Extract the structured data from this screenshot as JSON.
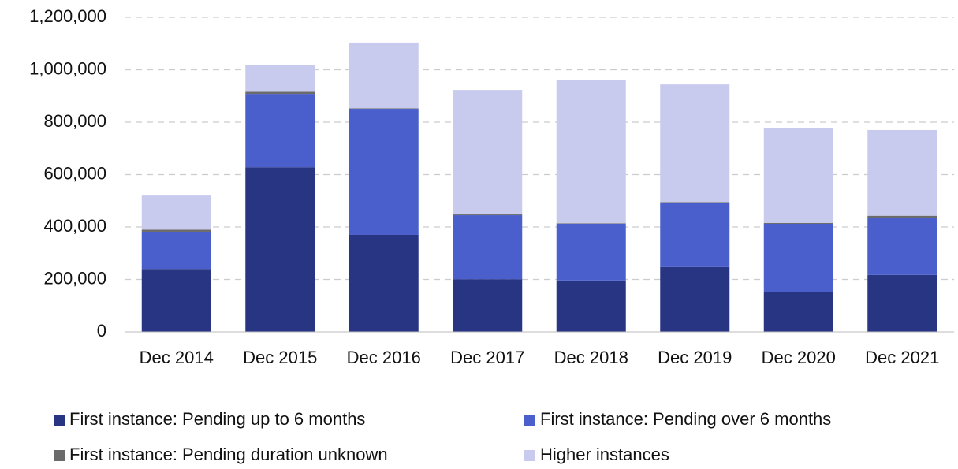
{
  "chart_data": {
    "type": "stacked_bar",
    "categories": [
      "Dec 2014",
      "Dec 2015",
      "Dec 2016",
      "Dec 2017",
      "Dec 2018",
      "Dec 2019",
      "Dec 2020",
      "Dec 2021"
    ],
    "series": [
      {
        "name": "First instance: Pending up to 6 months",
        "color": "#283583",
        "values": [
          240000,
          628000,
          370000,
          201000,
          196000,
          247000,
          153000,
          217000
        ]
      },
      {
        "name": "First instance: Pending over 6 months",
        "color": "#4a5fcc",
        "values": [
          142000,
          280000,
          481000,
          244000,
          216000,
          246000,
          259000,
          219000
        ]
      },
      {
        "name": "First instance: Pending duration unknown",
        "color": "#6b6b6b",
        "values": [
          8000,
          8000,
          2000,
          3000,
          2000,
          2000,
          3000,
          7000
        ]
      },
      {
        "name": "Higher instances",
        "color": "#c8cbee",
        "values": [
          130000,
          102000,
          251000,
          475000,
          548000,
          449000,
          361000,
          327000
        ]
      }
    ],
    "ylim": [
      0,
      1200000
    ],
    "yticks": [
      0,
      {
        "value": 200000,
        "label": "200,000"
      },
      {
        "value": 400000,
        "label": "400,000"
      },
      {
        "value": 600000,
        "label": "600,000"
      },
      {
        "value": 800000,
        "label": "800,000"
      },
      {
        "value": 1000000,
        "label": "1,000,000"
      },
      {
        "value": 1200000,
        "label": "1,200,000"
      }
    ],
    "grid": true
  }
}
